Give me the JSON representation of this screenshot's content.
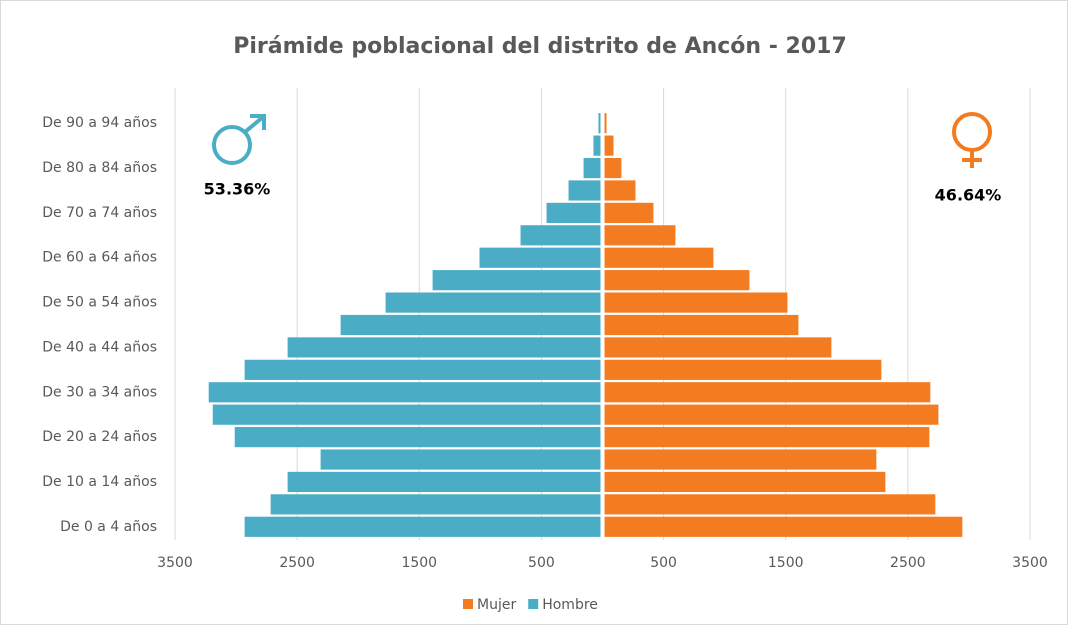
{
  "chart_data": {
    "type": "bar",
    "orientation": "horizontal",
    "title": "Pirámide poblacional del distrito de Ancón - 2017",
    "categories": [
      "De 0  a 4 años",
      null,
      "De 10 a 14 años",
      null,
      "De 20 a 24 años",
      null,
      "De 30 a 34 años",
      null,
      "De 40 a 44 años",
      null,
      "De 50 a 54 años",
      null,
      "De 60 a 64 años",
      null,
      "De 70 a 74 años",
      null,
      "De 80 a 84 años",
      null,
      "De 90 a 94 años"
    ],
    "series": [
      {
        "name": "Mujer",
        "color": "#f47c20",
        "values": [
          2946,
          2725,
          2316,
          2242,
          2676,
          2750,
          2684,
          2283,
          1874,
          1604,
          1514,
          1203,
          908,
          597,
          417,
          270,
          155,
          90,
          33
        ]
      },
      {
        "name": "Hombre",
        "color": "#4bacc6",
        "values": [
          -2930,
          -2717,
          -2578,
          -2308,
          -3011,
          -3191,
          -3224,
          -2930,
          -2578,
          -2144,
          -1776,
          -1391,
          -1007,
          -671,
          -458,
          -278,
          -155,
          -74,
          -33
        ]
      }
    ],
    "xlim": [
      -3500,
      3500
    ],
    "xticks": [
      {
        "value": -3500,
        "label": "3500"
      },
      {
        "value": -2500,
        "label": "2500"
      },
      {
        "value": -1500,
        "label": "1500"
      },
      {
        "value": -500,
        "label": "500"
      },
      500,
      1500,
      2500,
      3500
    ],
    "grid": true,
    "legend": "bottom",
    "annotations": [
      "53.36%",
      "46.64%"
    ]
  }
}
